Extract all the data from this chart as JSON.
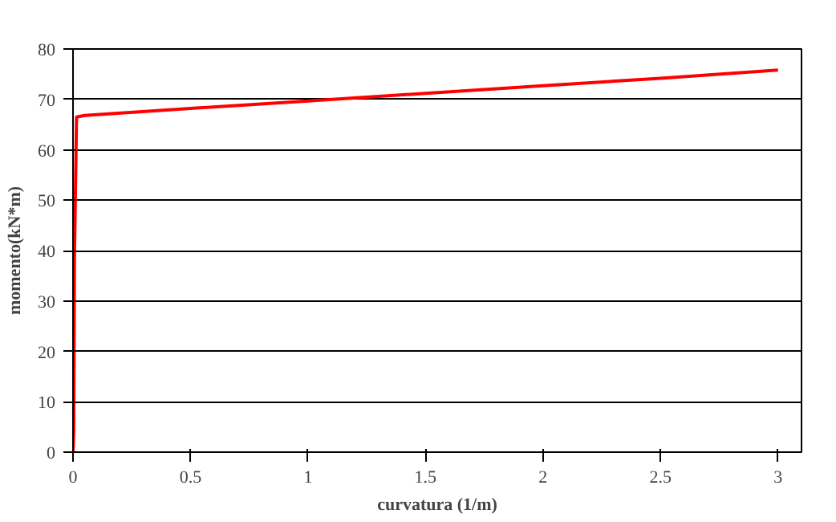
{
  "chart_data": {
    "type": "line",
    "xlabel": "curvatura (1/m)",
    "ylabel": "momento(kN*m)",
    "x": [
      0,
      0.003,
      0.006,
      0.015,
      0.05,
      0.5,
      1,
      1.5,
      2,
      2.5,
      3
    ],
    "series": [
      {
        "color": "#ff0000",
        "values": [
          0,
          4,
          38,
          66.5,
          66.8,
          68.2,
          69.7,
          71.2,
          72.7,
          74.2,
          75.8
        ]
      }
    ],
    "xlim": [
      0,
      3.1
    ],
    "ylim": [
      0,
      80
    ],
    "xticks": [
      0,
      0.5,
      1,
      1.5,
      2,
      2.5,
      3
    ],
    "yticks": [
      0,
      10,
      20,
      30,
      40,
      50,
      60,
      70,
      80
    ],
    "grid": "y",
    "marker": "none",
    "line_style": "solid"
  }
}
